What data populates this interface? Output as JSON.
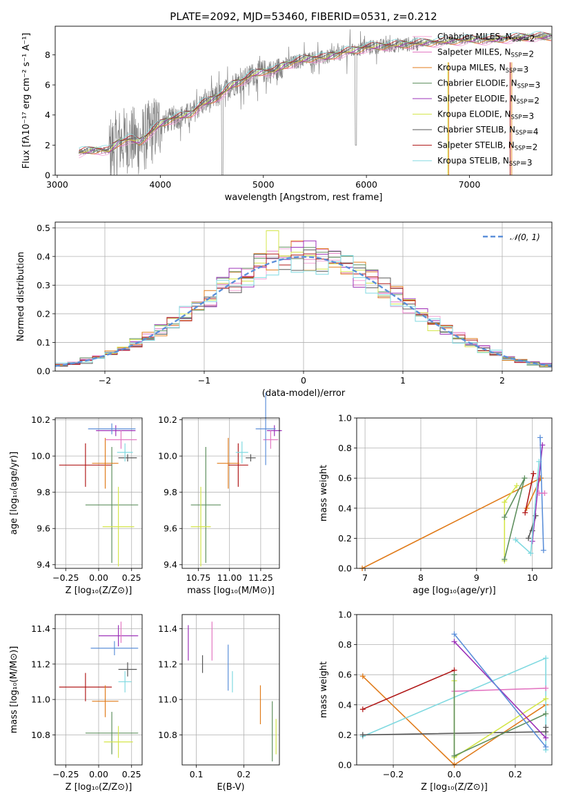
{
  "figure": {
    "title": "PLATE=2092, MJD=53460, FIBERID=0531, z=0.212",
    "colors": {
      "chabrier_miles": "#f4a6d7",
      "salpeter_miles": "#e377c2",
      "kroupa_miles": "#e07b1a",
      "chabrier_elodie": "#5e8f5e",
      "salpeter_elodie": "#9b30b8",
      "kroupa_elodie": "#d4e64a",
      "chabrier_stelib": "#555555",
      "salpeter_stelib": "#b01818",
      "kroupa_stelib": "#7fd9e0",
      "data_spectrum": "#808080",
      "normal_curve": "#5b8fd9"
    }
  },
  "chart_data": [
    {
      "id": "spectrum",
      "type": "line",
      "xlabel": "wavelength [Angstrom, rest frame]",
      "ylabel": "Flux [fλ10⁻¹⁷ erg cm⁻² s⁻¹ A⁻¹]",
      "xlim": [
        2980,
        7800
      ],
      "ylim": [
        0,
        9.9
      ],
      "xticks": [
        3000,
        4000,
        5000,
        6000,
        7000
      ],
      "yticks": [
        0,
        2,
        4,
        6,
        8
      ],
      "grid": false,
      "legend_position": "top-right",
      "continuum": [
        [
          3210,
          1.5
        ],
        [
          3300,
          1.6
        ],
        [
          3400,
          1.7
        ],
        [
          3500,
          1.6
        ],
        [
          3600,
          2.2
        ],
        [
          3700,
          2.4
        ],
        [
          3800,
          2.2
        ],
        [
          3900,
          2.8
        ],
        [
          4000,
          3.4
        ],
        [
          4100,
          3.7
        ],
        [
          4200,
          3.9
        ],
        [
          4300,
          4.1
        ],
        [
          4400,
          4.7
        ],
        [
          4500,
          5.0
        ],
        [
          4600,
          5.4
        ],
        [
          4700,
          6.0
        ],
        [
          4800,
          6.3
        ],
        [
          4900,
          6.7
        ],
        [
          5000,
          6.9
        ],
        [
          5100,
          6.9
        ],
        [
          5200,
          7.3
        ],
        [
          5300,
          7.5
        ],
        [
          5400,
          7.7
        ],
        [
          5500,
          7.8
        ],
        [
          5600,
          7.8
        ],
        [
          5700,
          8.0
        ],
        [
          5800,
          8.2
        ],
        [
          5900,
          8.3
        ],
        [
          6000,
          8.5
        ],
        [
          6200,
          8.6
        ],
        [
          6400,
          8.7
        ],
        [
          6600,
          8.8
        ],
        [
          6800,
          8.9
        ],
        [
          7000,
          9.0
        ],
        [
          7200,
          9.0
        ],
        [
          7400,
          9.1
        ],
        [
          7600,
          9.2
        ],
        [
          7800,
          9.2
        ]
      ],
      "series": [
        {
          "name": "Chabrier MILES, N_SSP=2",
          "color_key": "chabrier_miles"
        },
        {
          "name": "Salpeter MILES, N_SSP=2",
          "color_key": "salpeter_miles"
        },
        {
          "name": "Kroupa MILES, N_SSP=3",
          "color_key": "kroupa_miles"
        },
        {
          "name": "Chabrier ELODIE, N_SSP=3",
          "color_key": "chabrier_elodie"
        },
        {
          "name": "Salpeter ELODIE, N_SSP=2",
          "color_key": "salpeter_elodie"
        },
        {
          "name": "Kroupa ELODIE, N_SSP=3",
          "color_key": "kroupa_elodie"
        },
        {
          "name": "Chabrier STELIB, N_SSP=4",
          "color_key": "chabrier_stelib"
        },
        {
          "name": "Salpeter STELIB, N_SSP=2",
          "color_key": "salpeter_stelib"
        },
        {
          "name": "Kroupa STELIB, N_SSP=3",
          "color_key": "kroupa_stelib"
        }
      ]
    },
    {
      "id": "residuals",
      "type": "bar",
      "xlabel": "(data-model)/error",
      "ylabel": "Normed distribution",
      "xlim": [
        -2.5,
        2.5
      ],
      "ylim": [
        0,
        0.52
      ],
      "xticks": [
        -2,
        -1,
        0,
        1,
        2
      ],
      "yticks": [
        0.0,
        0.1,
        0.2,
        0.3,
        0.4,
        0.5
      ],
      "bin_width": 0.125,
      "grid": true,
      "legend_position": "top-right",
      "legend_label": "𝒩(0, 1)"
    },
    {
      "id": "age_vs_Z",
      "type": "scatter",
      "xlabel": "Z [log₁₀(Z/Z⊙)]",
      "ylabel": "age  [log₁₀(age/yr)]",
      "xlim": [
        -0.33,
        0.33
      ],
      "ylim": [
        9.38,
        10.21
      ],
      "xticks": [
        -0.25,
        0.0,
        0.25
      ],
      "yticks": [
        9.4,
        9.6,
        9.8,
        10.0,
        10.2
      ],
      "grid": true,
      "points": [
        {
          "color_key": "salpeter_stelib",
          "x": -0.1,
          "xerr": 0.2,
          "y": 9.95,
          "yerr": 0.12
        },
        {
          "color_key": "chabrier_elodie",
          "x": 0.1,
          "xerr": 0.2,
          "y": 9.73,
          "yerr": 0.32
        },
        {
          "color_key": "kroupa_elodie",
          "x": 0.15,
          "xerr": 0.12,
          "y": 9.61,
          "yerr": 0.22
        },
        {
          "color_key": "kroupa_miles",
          "x": 0.05,
          "xerr": 0.1,
          "y": 9.96,
          "yerr": 0.14
        },
        {
          "color_key": "chabrier_stelib",
          "x": 0.22,
          "xerr": 0.07,
          "y": 9.99,
          "yerr": 0.02
        },
        {
          "color_key": "kroupa_stelib",
          "x": 0.2,
          "xerr": 0.06,
          "y": 10.02,
          "yerr": 0.05
        },
        {
          "color_key": "salpeter_elodie",
          "x": 0.13,
          "xerr": 0.15,
          "y": 10.14,
          "yerr": 0.03
        },
        {
          "color_key": "salpeter_miles",
          "x": 0.17,
          "xerr": 0.12,
          "y": 10.09,
          "yerr": 0.05
        },
        {
          "color_key": "normal_curve",
          "x": 0.1,
          "xerr": 0.18,
          "y": 10.15,
          "yerr": 0.03
        }
      ]
    },
    {
      "id": "age_vs_mass",
      "type": "scatter",
      "xlabel": "mass [log₁₀(M/M⊙)]",
      "ylabel": "",
      "xlim": [
        10.62,
        11.4
      ],
      "ylim": [
        9.38,
        10.21
      ],
      "xticks": [
        10.75,
        11.0,
        11.25
      ],
      "yticks": [
        9.4,
        9.6,
        9.8,
        10.0,
        10.2
      ],
      "xtick_labels": [
        "10.75",
        "11.00",
        "11.25"
      ],
      "grid": true,
      "points": [
        {
          "color_key": "salpeter_stelib",
          "x": 11.07,
          "xerr": 0.08,
          "y": 9.95,
          "yerr": 0.12
        },
        {
          "color_key": "chabrier_elodie",
          "x": 10.81,
          "xerr": 0.12,
          "y": 9.73,
          "yerr": 0.32
        },
        {
          "color_key": "kroupa_elodie",
          "x": 10.77,
          "xerr": 0.08,
          "y": 9.61,
          "yerr": 0.22
        },
        {
          "color_key": "kroupa_miles",
          "x": 10.99,
          "xerr": 0.09,
          "y": 9.96,
          "yerr": 0.14
        },
        {
          "color_key": "chabrier_stelib",
          "x": 11.17,
          "xerr": 0.04,
          "y": 9.99,
          "yerr": 0.02
        },
        {
          "color_key": "kroupa_stelib",
          "x": 11.1,
          "xerr": 0.05,
          "y": 10.02,
          "yerr": 0.06
        },
        {
          "color_key": "salpeter_elodie",
          "x": 11.36,
          "xerr": 0.06,
          "y": 10.14,
          "yerr": 0.03
        },
        {
          "color_key": "salpeter_miles",
          "x": 11.33,
          "xerr": 0.06,
          "y": 10.09,
          "yerr": 0.05
        },
        {
          "color_key": "normal_curve",
          "x": 11.29,
          "xerr": 0.08,
          "y": 10.15,
          "yerr": 0.2
        }
      ]
    },
    {
      "id": "weight_vs_age",
      "type": "line",
      "xlabel": "age  [log₁₀(age/yr)]",
      "ylabel": "mass weight",
      "xlim": [
        6.85,
        10.35
      ],
      "ylim": [
        0.0,
        1.0
      ],
      "xticks": [
        7,
        8,
        9,
        10
      ],
      "yticks": [
        0.0,
        0.2,
        0.4,
        0.6,
        0.8,
        1.0
      ],
      "grid": true,
      "series": [
        {
          "color_key": "kroupa_miles",
          "x": [
            6.95,
            10.15
          ],
          "y": [
            0.0,
            0.6
          ]
        },
        {
          "color_key": "kroupa_miles",
          "x": [
            10.15,
            9.9
          ],
          "y": [
            0.6,
            0.4
          ]
        },
        {
          "color_key": "kroupa_elodie",
          "x": [
            9.5,
            9.5,
            9.72
          ],
          "y": [
            0.05,
            0.44,
            0.55
          ]
        },
        {
          "color_key": "chabrier_elodie",
          "x": [
            9.5,
            9.86,
            9.5
          ],
          "y": [
            0.06,
            0.6,
            0.34
          ]
        },
        {
          "color_key": "salpeter_stelib",
          "x": [
            9.87,
            10.02
          ],
          "y": [
            0.37,
            0.63
          ]
        },
        {
          "color_key": "chabrier_stelib",
          "x": [
            9.93,
            10.06,
            10.0
          ],
          "y": [
            0.2,
            0.35,
            0.25
          ]
        },
        {
          "color_key": "salpeter_elodie",
          "x": [
            10.0,
            10.18
          ],
          "y": [
            0.18,
            0.82
          ]
        },
        {
          "color_key": "kroupa_stelib",
          "x": [
            9.7,
            9.97,
            10.12
          ],
          "y": [
            0.19,
            0.1,
            0.71
          ]
        },
        {
          "color_key": "normal_curve",
          "x": [
            10.14,
            10.2
          ],
          "y": [
            0.87,
            0.12
          ]
        },
        {
          "color_key": "salpeter_miles",
          "x": [
            10.12,
            10.22
          ],
          "y": [
            0.5,
            0.5
          ]
        }
      ]
    },
    {
      "id": "mass_vs_Z",
      "type": "scatter",
      "xlabel": "Z [log₁₀(Z/Z⊙)]",
      "ylabel": "mass [log₁₀(M/M⊙)]",
      "xlim": [
        -0.33,
        0.33
      ],
      "ylim": [
        10.63,
        11.48
      ],
      "xticks": [
        -0.25,
        0.0,
        0.25
      ],
      "yticks": [
        10.8,
        11.0,
        11.2,
        11.4
      ],
      "grid": true,
      "points": [
        {
          "color_key": "salpeter_stelib",
          "x": -0.1,
          "xerr": 0.2,
          "y": 11.07,
          "yerr": 0.08
        },
        {
          "color_key": "chabrier_elodie",
          "x": 0.1,
          "xerr": 0.2,
          "y": 10.81,
          "yerr": 0.12
        },
        {
          "color_key": "kroupa_elodie",
          "x": 0.15,
          "xerr": 0.11,
          "y": 10.76,
          "yerr": 0.09
        },
        {
          "color_key": "kroupa_miles",
          "x": 0.05,
          "xerr": 0.1,
          "y": 10.99,
          "yerr": 0.09
        },
        {
          "color_key": "chabrier_stelib",
          "x": 0.22,
          "xerr": 0.07,
          "y": 11.17,
          "yerr": 0.04
        },
        {
          "color_key": "kroupa_stelib",
          "x": 0.2,
          "xerr": 0.05,
          "y": 11.1,
          "yerr": 0.06
        },
        {
          "color_key": "salpeter_elodie",
          "x": 0.15,
          "xerr": 0.15,
          "y": 11.36,
          "yerr": 0.06
        },
        {
          "color_key": "salpeter_miles",
          "x": 0.17,
          "xerr": 0.0,
          "y": 11.38,
          "yerr": 0.06
        },
        {
          "color_key": "normal_curve",
          "x": 0.12,
          "xerr": 0.18,
          "y": 11.29,
          "yerr": 0.04
        }
      ]
    },
    {
      "id": "mass_vs_ebv",
      "type": "scatter",
      "xlabel": "E(B-V)",
      "ylabel": "",
      "xlim": [
        0.07,
        0.275
      ],
      "ylim": [
        10.63,
        11.48
      ],
      "xticks": [
        0.1,
        0.2
      ],
      "yticks": [
        10.8,
        11.0,
        11.2,
        11.4
      ],
      "grid": true,
      "points": [
        {
          "color_key": "salpeter_elodie",
          "x": 0.083,
          "y": 11.32,
          "yerr": 0.1
        },
        {
          "color_key": "chabrier_stelib",
          "x": 0.113,
          "y": 11.2,
          "yerr": 0.05
        },
        {
          "color_key": "salpeter_miles",
          "x": 0.133,
          "y": 11.33,
          "yerr": 0.11
        },
        {
          "color_key": "normal_curve",
          "x": 0.167,
          "y": 11.18,
          "yerr": 0.13
        },
        {
          "color_key": "kroupa_stelib",
          "x": 0.176,
          "y": 11.1,
          "yerr": 0.06
        },
        {
          "color_key": "kroupa_miles",
          "x": 0.235,
          "y": 10.97,
          "yerr": 0.11
        },
        {
          "color_key": "chabrier_elodie",
          "x": 0.26,
          "y": 10.82,
          "yerr": 0.17
        },
        {
          "color_key": "kroupa_elodie",
          "x": 0.268,
          "y": 10.79,
          "yerr": 0.1
        }
      ]
    },
    {
      "id": "weight_vs_Z",
      "type": "line",
      "xlabel": "Z [log₁₀(Z/Z⊙)]",
      "ylabel": "mass weight",
      "xlim": [
        -0.32,
        0.32
      ],
      "ylim": [
        0.0,
        1.0
      ],
      "xticks": [
        -0.2,
        0.0,
        0.2
      ],
      "yticks": [
        0.0,
        0.2,
        0.4,
        0.6,
        0.8,
        1.0
      ],
      "grid": true,
      "series": [
        {
          "color_key": "kroupa_miles",
          "x": [
            -0.3,
            0.0,
            0.3
          ],
          "y": [
            0.59,
            0.0,
            0.4
          ]
        },
        {
          "color_key": "salpeter_stelib",
          "x": [
            -0.3,
            0.0
          ],
          "y": [
            0.37,
            0.63
          ]
        },
        {
          "color_key": "kroupa_stelib",
          "x": [
            -0.3,
            0.3,
            0.3
          ],
          "y": [
            0.19,
            0.71,
            0.1
          ]
        },
        {
          "color_key": "chabrier_stelib",
          "x": [
            -0.3,
            0.3,
            0.3
          ],
          "y": [
            0.2,
            0.22,
            0.25
          ]
        },
        {
          "color_key": "salpeter_miles",
          "x": [
            0.0,
            0.3
          ],
          "y": [
            0.49,
            0.51
          ]
        },
        {
          "color_key": "kroupa_elodie",
          "x": [
            0.0,
            0.0,
            0.3
          ],
          "y": [
            0.56,
            0.05,
            0.44
          ]
        },
        {
          "color_key": "chabrier_elodie",
          "x": [
            0.0,
            0.0,
            0.3
          ],
          "y": [
            0.6,
            0.06,
            0.34
          ]
        },
        {
          "color_key": "salpeter_elodie",
          "x": [
            0.0,
            0.3
          ],
          "y": [
            0.82,
            0.18
          ]
        },
        {
          "color_key": "normal_curve",
          "x": [
            0.0,
            0.3
          ],
          "y": [
            0.87,
            0.12
          ]
        }
      ]
    }
  ]
}
